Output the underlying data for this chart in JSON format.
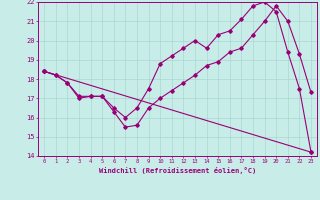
{
  "xlabel": "Windchill (Refroidissement éolien,°C)",
  "xlim": [
    -0.5,
    23.5
  ],
  "ylim": [
    14,
    22
  ],
  "xticks": [
    0,
    1,
    2,
    3,
    4,
    5,
    6,
    7,
    8,
    9,
    10,
    11,
    12,
    13,
    14,
    15,
    16,
    17,
    18,
    19,
    20,
    21,
    22,
    23
  ],
  "yticks": [
    14,
    15,
    16,
    17,
    18,
    19,
    20,
    21,
    22
  ],
  "background_color": "#c8ede8",
  "line_color": "#990077",
  "grid_color": "#a8d8d0",
  "line1_x": [
    0,
    1,
    2,
    3,
    4,
    5,
    6,
    7,
    8,
    9,
    10,
    11,
    12,
    13,
    14,
    15,
    16,
    17,
    18,
    19,
    20,
    21,
    22,
    23
  ],
  "line1_y": [
    18.4,
    18.2,
    17.8,
    17.0,
    17.1,
    17.1,
    16.3,
    15.5,
    15.6,
    16.5,
    17.0,
    17.4,
    17.8,
    18.2,
    18.7,
    18.9,
    19.4,
    19.6,
    20.3,
    21.0,
    21.8,
    21.0,
    19.3,
    17.3
  ],
  "line2_x": [
    0,
    1,
    2,
    3,
    4,
    5,
    6,
    7,
    8,
    9,
    10,
    11,
    12,
    13,
    14,
    15,
    16,
    17,
    18,
    19,
    20,
    21,
    22,
    23
  ],
  "line2_y": [
    18.4,
    18.2,
    17.8,
    17.1,
    17.1,
    17.1,
    16.5,
    16.0,
    16.5,
    17.5,
    18.8,
    19.2,
    19.6,
    20.0,
    19.6,
    20.3,
    20.5,
    21.1,
    21.8,
    22.0,
    21.5,
    19.4,
    17.5,
    14.2
  ],
  "line3_x": [
    0,
    23
  ],
  "line3_y": [
    18.4,
    14.2
  ]
}
